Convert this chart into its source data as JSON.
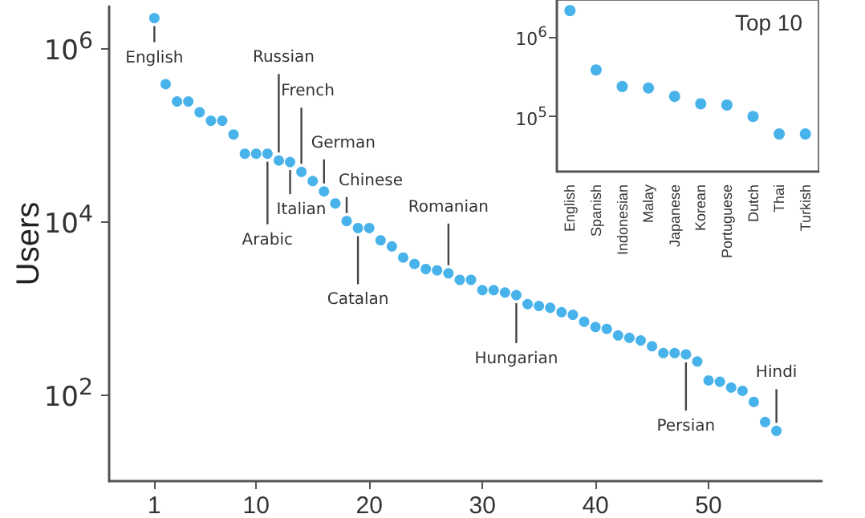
{
  "chart_data": [
    {
      "type": "scatter",
      "ylabel": "Users",
      "log": "y",
      "marker": "circle",
      "x": [
        1,
        2,
        3,
        4,
        5,
        6,
        7,
        8,
        9,
        10,
        11,
        12,
        13,
        14,
        15,
        16,
        17,
        18,
        19,
        20,
        21,
        22,
        23,
        24,
        25,
        26,
        27,
        28,
        29,
        30,
        31,
        32,
        33,
        34,
        35,
        36,
        37,
        38,
        39,
        40,
        41,
        42,
        43,
        44,
        45,
        46,
        47,
        48,
        49,
        50,
        51,
        52,
        53,
        54,
        55,
        56
      ],
      "series": [
        {
          "color": "#1a9fe6",
          "values": [
            2200000,
            380000,
            240000,
            240000,
            180000,
            144000,
            144000,
            100000,
            60000,
            60000,
            60000,
            50000,
            48000,
            37000,
            29000,
            22000,
            16000,
            10000,
            8300,
            8300,
            6000,
            5100,
            3800,
            3200,
            2800,
            2700,
            2500,
            2100,
            2100,
            1600,
            1600,
            1500,
            1400,
            1100,
            1050,
            1000,
            890,
            830,
            690,
            600,
            570,
            480,
            450,
            420,
            360,
            300,
            300,
            290,
            240,
            145,
            140,
            120,
            110,
            82,
            48,
            38
          ]
        }
      ],
      "xlim": [
        -3,
        60
      ],
      "xticks": [
        1,
        10,
        20,
        30,
        40,
        50
      ],
      "ylim": [
        10,
        3000000
      ],
      "yticks": [
        {
          "value": 100,
          "label": "10$^{2}$"
        },
        {
          "value": 10000,
          "label": "10$^{4}$"
        },
        {
          "value": 1000000,
          "label": "10$^{6}$"
        }
      ],
      "annotations": [
        {
          "text": "English",
          "x": 1,
          "y": 2200000
        },
        {
          "text": "Russian",
          "x": 12,
          "y": 50000
        },
        {
          "text": "French",
          "x": 14,
          "y": 37000
        },
        {
          "text": "German",
          "x": 16,
          "y": 22000
        },
        {
          "text": "Arabic",
          "x": 11,
          "y": 60000
        },
        {
          "text": "Italian",
          "x": 13,
          "y": 48000
        },
        {
          "text": "Chinese",
          "x": 18,
          "y": 10000
        },
        {
          "text": "Catalan",
          "x": 19,
          "y": 8300
        },
        {
          "text": "Romanian",
          "x": 27,
          "y": 2500
        },
        {
          "text": "Hungarian",
          "x": 33,
          "y": 1400
        },
        {
          "text": "Persian",
          "x": 48,
          "y": 290
        },
        {
          "text": "Hindi",
          "x": 56,
          "y": 38
        }
      ]
    },
    {
      "type": "scatter",
      "title": "Top 10",
      "log": "y",
      "marker": "circle",
      "categories": [
        "English",
        "Spanish",
        "Indonesian",
        "Malay",
        "Japanese",
        "Korean",
        "Portuguese",
        "Dutch",
        "Thai",
        "Turkish"
      ],
      "series": [
        {
          "color": "#1a9fe6",
          "values": [
            2200000,
            390000,
            240000,
            230000,
            180000,
            145000,
            140000,
            100000,
            60000,
            60000
          ]
        }
      ],
      "ylim": [
        20000,
        3000000
      ],
      "yticks": [
        {
          "value": 100000,
          "label": "10$^{5}$"
        },
        {
          "value": 1000000,
          "label": "10$^{6}$"
        }
      ]
    }
  ]
}
